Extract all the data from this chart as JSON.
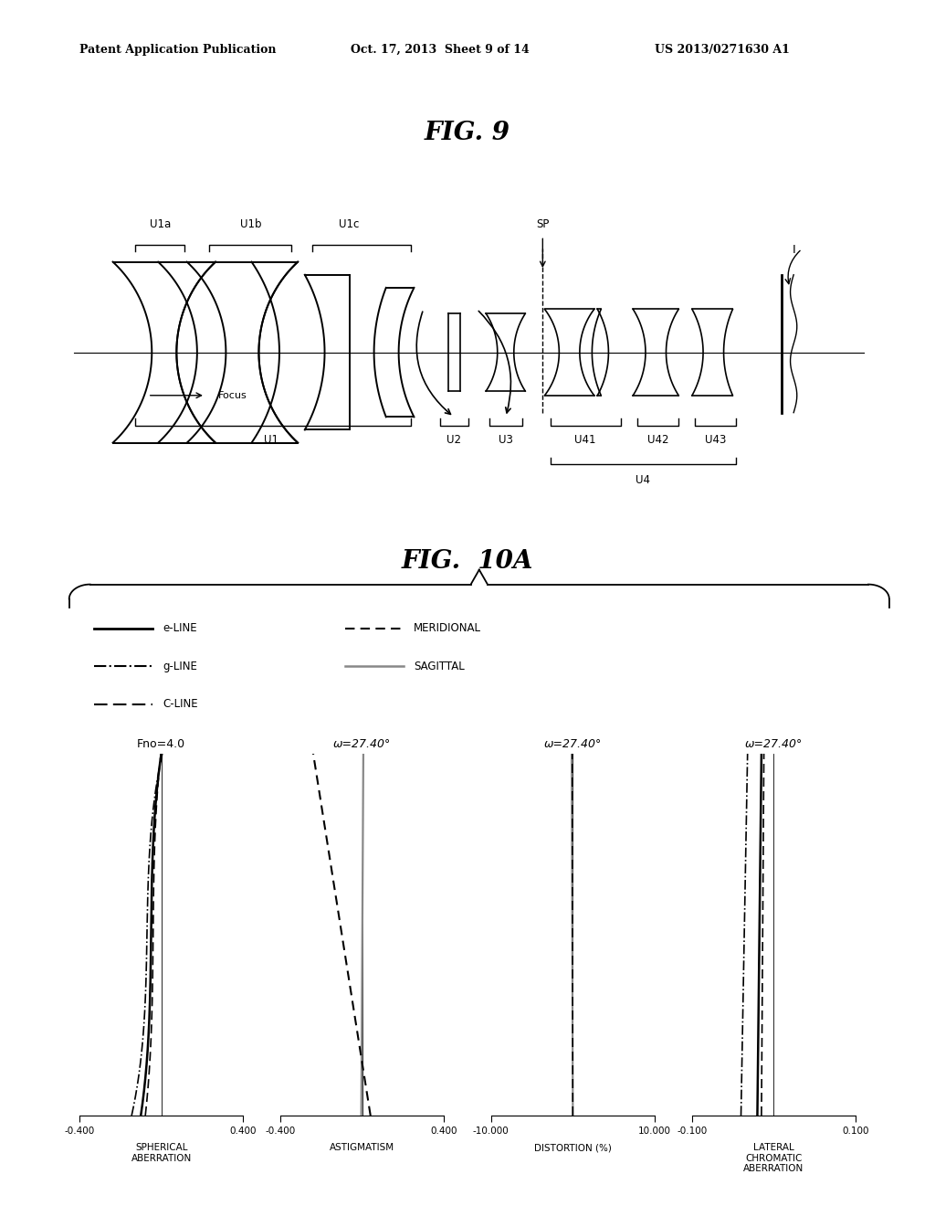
{
  "header_left": "Patent Application Publication",
  "header_mid": "Oct. 17, 2013  Sheet 9 of 14",
  "header_right": "US 2013/0271630 A1",
  "fig9_title": "FIG. 9",
  "fig10a_title": "FIG.  10A",
  "plots": [
    {
      "title": "Fno=4.0",
      "xlabel": "SPHERICAL\nABERRATION",
      "xlim": [
        -0.4,
        0.4
      ],
      "xticks": [
        -0.4,
        0.4
      ],
      "xtick_labels": [
        "-0.400",
        "0.400"
      ],
      "type": "spherical"
    },
    {
      "title": "ω=27.40°",
      "xlabel": "ASTIGMATISM",
      "xlim": [
        -0.4,
        0.4
      ],
      "xticks": [
        -0.4,
        0.4
      ],
      "xtick_labels": [
        "-0.400",
        "0.400"
      ],
      "type": "astigmatism"
    },
    {
      "title": "ω=27.40°",
      "xlabel": "DISTORTION (%)",
      "xlim": [
        -10.0,
        10.0
      ],
      "xticks": [
        -10.0,
        10.0
      ],
      "xtick_labels": [
        "-10.000",
        "10.000"
      ],
      "type": "distortion"
    },
    {
      "title": "ω=27.40°",
      "xlabel": "LATERAL\nCHROMATIC\nABERRATION",
      "xlim": [
        -0.1,
        0.1
      ],
      "xticks": [
        -0.1,
        0.1
      ],
      "xtick_labels": [
        "-0.100",
        "0.100"
      ],
      "type": "lateral"
    }
  ],
  "background_color": "#ffffff"
}
